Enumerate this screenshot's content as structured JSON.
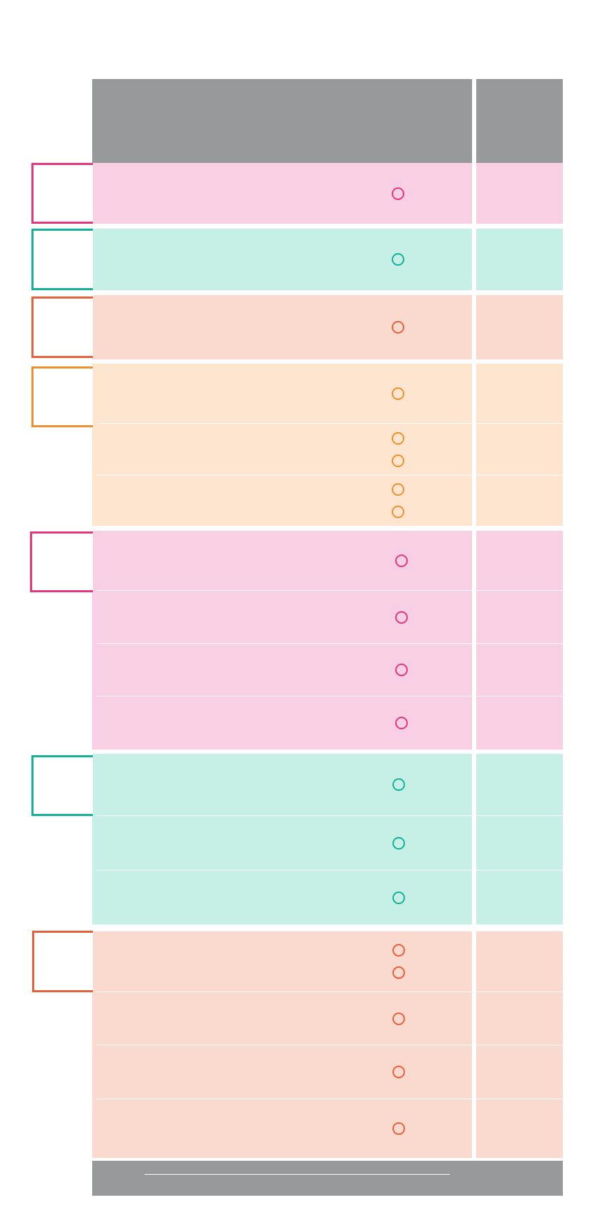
{
  "colors": {
    "header_gray": "#98999b",
    "pink": {
      "fill": "#f9d0e3",
      "stroke": "#e5367d"
    },
    "teal": {
      "fill": "#c6efe6",
      "stroke": "#12b199"
    },
    "coral": {
      "fill": "#fad9cf",
      "stroke": "#e8603a"
    },
    "orange": {
      "fill": "#fde5cf",
      "stroke": "#f08f2e"
    }
  },
  "groups": [
    {
      "color": "pink",
      "markers_per_row": [
        1
      ]
    },
    {
      "color": "teal",
      "markers_per_row": [
        1
      ]
    },
    {
      "color": "coral",
      "markers_per_row": [
        1
      ]
    },
    {
      "color": "orange",
      "markers_per_row": [
        1,
        2,
        2
      ]
    },
    {
      "color": "pink",
      "markers_per_row": [
        1,
        1,
        1,
        1
      ]
    },
    {
      "color": "teal",
      "markers_per_row": [
        1,
        1,
        1
      ]
    },
    {
      "color": "coral",
      "markers_per_row": [
        2,
        1,
        1,
        1
      ]
    }
  ]
}
